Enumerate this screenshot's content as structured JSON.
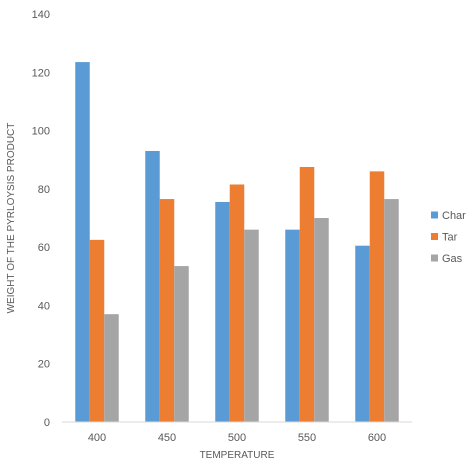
{
  "chart_data": {
    "type": "bar",
    "title": "",
    "xlabel": "TEMPERATURE",
    "ylabel": "WEIGHT OF THE PYRLOYSIS PRODUCT",
    "categories": [
      "400",
      "450",
      "500",
      "550",
      "600"
    ],
    "ylim": [
      0,
      140
    ],
    "yticks": [
      0,
      20,
      40,
      60,
      80,
      100,
      120,
      140
    ],
    "grid": false,
    "legend_position": "right",
    "series": [
      {
        "name": "Char",
        "color": "#5B9BD5",
        "values": [
          123.5,
          93,
          75.5,
          66,
          60.5
        ]
      },
      {
        "name": "Tar",
        "color": "#ED7D31",
        "values": [
          62.5,
          76.5,
          81.5,
          87.5,
          86
        ]
      },
      {
        "name": "Gas",
        "color": "#A5A5A5",
        "values": [
          37,
          53.5,
          66,
          70,
          76.5
        ]
      }
    ]
  }
}
